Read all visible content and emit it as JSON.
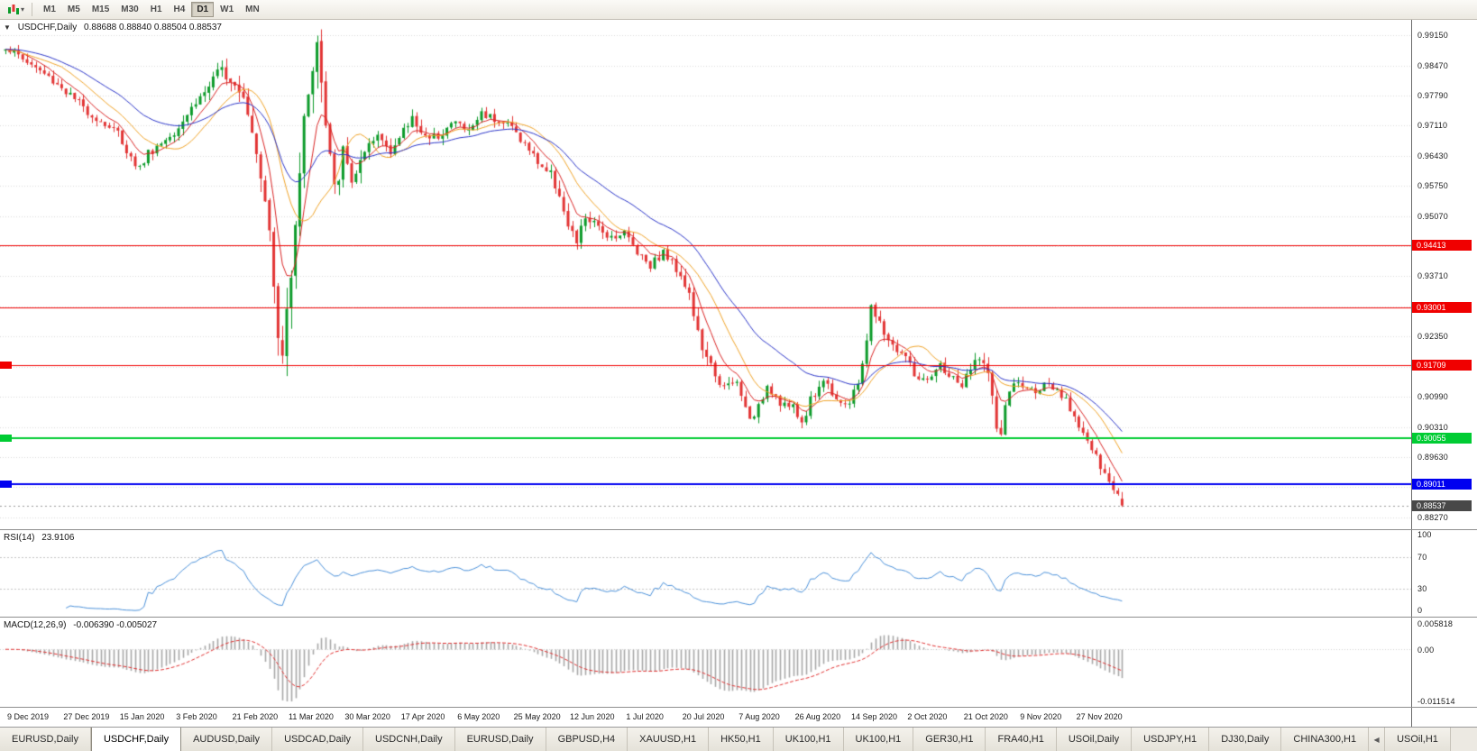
{
  "toolbar": {
    "timeframes": [
      "M1",
      "M5",
      "M15",
      "M30",
      "H1",
      "H4",
      "D1",
      "W1",
      "MN"
    ],
    "active_timeframe": "D1"
  },
  "main_chart": {
    "dropdown_arrow": "▼",
    "symbol_period": "USDCHF,Daily",
    "ohlc_text": "0.88688 0.88840 0.88504 0.88537",
    "axis": {
      "labels": [
        {
          "text": "0.99150",
          "price": 0.9915
        },
        {
          "text": "0.98470",
          "price": 0.9847
        },
        {
          "text": "0.97790",
          "price": 0.9779
        },
        {
          "text": "0.97110",
          "price": 0.9711
        },
        {
          "text": "0.96430",
          "price": 0.9643
        },
        {
          "text": "0.95750",
          "price": 0.9575
        },
        {
          "text": "0.95070",
          "price": 0.9507
        },
        {
          "text": "0.93710",
          "price": 0.9371
        },
        {
          "text": "0.92350",
          "price": 0.9235
        },
        {
          "text": "0.90990",
          "price": 0.9099
        },
        {
          "text": "0.90310",
          "price": 0.9031
        },
        {
          "text": "0.89630",
          "price": 0.8963
        },
        {
          "text": "0.88270",
          "price": 0.8827
        }
      ],
      "grid": {
        "start": 0.9915,
        "step": 0.0068,
        "count": 17
      }
    },
    "hlines": [
      {
        "label": "0.94413",
        "price": 0.94413,
        "color": "#f00000",
        "width": 1,
        "left_tag": false
      },
      {
        "label": "0.93001",
        "price": 0.93001,
        "color": "#f00000",
        "width": 1,
        "left_tag": false
      },
      {
        "label": "0.91709",
        "price": 0.91709,
        "color": "#f00000",
        "width": 1,
        "left_tag": true
      },
      {
        "label": "0.90055",
        "price": 0.90055,
        "color": "#00cc33",
        "width": 2,
        "left_tag": true
      },
      {
        "label": "0.89011",
        "price": 0.89011,
        "color": "#0000f0",
        "width": 2,
        "left_tag": true
      }
    ],
    "current_price": {
      "label": "0.88537",
      "price": 0.88537,
      "tag_color": "#484848"
    }
  },
  "rsi_panel": {
    "name": "RSI(14)",
    "value": "23.9106",
    "axis_labels": [
      "100",
      "70",
      "30",
      "0"
    ],
    "levels": [
      70,
      30
    ],
    "line_color": "#4a90d9",
    "period": 14
  },
  "macd_panel": {
    "name": "MACD(12,26,9)",
    "values": "-0.006390 -0.005027",
    "axis_top": "0.005818",
    "axis_zero": "0.00",
    "axis_bottom": "-0.011514",
    "scale": {
      "max": 0.005818,
      "min": -0.011514
    },
    "fast": 12,
    "slow": 26,
    "signal": 9,
    "histogram_color": "#a8a8a8",
    "signal_color": "#e03030"
  },
  "date_axis": {
    "labels": [
      {
        "t": 0,
        "text": "9 Dec 2019"
      },
      {
        "t": 13,
        "text": "27 Dec 2019"
      },
      {
        "t": 26,
        "text": "15 Jan 2020"
      },
      {
        "t": 39,
        "text": "3 Feb 2020"
      },
      {
        "t": 52,
        "text": "21 Feb 2020"
      },
      {
        "t": 65,
        "text": "11 Mar 2020"
      },
      {
        "t": 78,
        "text": "30 Mar 2020"
      },
      {
        "t": 91,
        "text": "17 Apr 2020"
      },
      {
        "t": 104,
        "text": "6 May 2020"
      },
      {
        "t": 117,
        "text": "25 May 2020"
      },
      {
        "t": 130,
        "text": "12 Jun 2020"
      },
      {
        "t": 143,
        "text": "1 Jul 2020"
      },
      {
        "t": 156,
        "text": "20 Jul 2020"
      },
      {
        "t": 169,
        "text": "7 Aug 2020"
      },
      {
        "t": 182,
        "text": "26 Aug 2020"
      },
      {
        "t": 195,
        "text": "14 Sep 2020"
      },
      {
        "t": 208,
        "text": "2 Oct 2020"
      },
      {
        "t": 221,
        "text": "21 Oct 2020"
      },
      {
        "t": 234,
        "text": "9 Nov 2020"
      },
      {
        "t": 247,
        "text": "27 Nov 2020"
      }
    ]
  },
  "tabs": {
    "scroll_left_glyph": "◀",
    "items": [
      {
        "label": "EURUSD,Daily",
        "active": false
      },
      {
        "label": "USDCHF,Daily",
        "active": true
      },
      {
        "label": "AUDUSD,Daily",
        "active": false
      },
      {
        "label": "USDCAD,Daily",
        "active": false
      },
      {
        "label": "USDCNH,Daily",
        "active": false
      },
      {
        "label": "EURUSD,Daily",
        "active": false
      },
      {
        "label": "GBPUSD,H4",
        "active": false
      },
      {
        "label": "XAUUSD,H1",
        "active": false
      },
      {
        "label": "HK50,H1",
        "active": false
      },
      {
        "label": "UK100,H1",
        "active": false
      },
      {
        "label": "UK100,H1",
        "active": false
      },
      {
        "label": "GER30,H1",
        "active": false
      },
      {
        "label": "FRA40,H1",
        "active": false
      },
      {
        "label": "USOil,Daily",
        "active": false
      },
      {
        "label": "USDJPY,H1",
        "active": false
      },
      {
        "label": "DJ30,Daily",
        "active": false
      },
      {
        "label": "CHINA300,H1",
        "active": false
      },
      {
        "label": "USOil,H1",
        "active": false
      }
    ]
  },
  "chart_data": {
    "type": "candlestick",
    "symbol": "USDCHF",
    "period": "Daily",
    "bars": 259,
    "ylim": [
      0.88,
      0.995
    ],
    "last_bar": {
      "open": 0.88688,
      "high": 0.8884,
      "low": 0.88504,
      "close": 0.88537
    },
    "candle_colors": {
      "up": "#0c9b2a",
      "down": "#e23434"
    },
    "moving_averages": [
      {
        "name": "fast",
        "type": "ema",
        "period": 7,
        "color": "#d92424"
      },
      {
        "name": "mid",
        "type": "sma",
        "period": 14,
        "color": "#efa226"
      },
      {
        "name": "slow",
        "type": "ema",
        "period": 30,
        "color": "#2b35c8"
      }
    ],
    "price_path": [
      [
        0,
        0.989
      ],
      [
        4,
        0.9862
      ],
      [
        8,
        0.9835
      ],
      [
        13,
        0.9798
      ],
      [
        17,
        0.976
      ],
      [
        21,
        0.9728
      ],
      [
        26,
        0.9695
      ],
      [
        29,
        0.9638
      ],
      [
        31,
        0.9615
      ],
      [
        33,
        0.965
      ],
      [
        36,
        0.9672
      ],
      [
        39,
        0.97
      ],
      [
        43,
        0.9752
      ],
      [
        47,
        0.98
      ],
      [
        50,
        0.9838
      ],
      [
        52,
        0.982
      ],
      [
        55,
        0.9788
      ],
      [
        58,
        0.966
      ],
      [
        60,
        0.956
      ],
      [
        61,
        0.946
      ],
      [
        63,
        0.923
      ],
      [
        64,
        0.9185
      ],
      [
        66,
        0.94
      ],
      [
        68,
        0.962
      ],
      [
        70,
        0.98
      ],
      [
        72,
        0.9898
      ],
      [
        74,
        0.9705
      ],
      [
        76,
        0.956
      ],
      [
        78,
        0.9648
      ],
      [
        80,
        0.959
      ],
      [
        83,
        0.964
      ],
      [
        86,
        0.9688
      ],
      [
        89,
        0.966
      ],
      [
        91,
        0.968
      ],
      [
        94,
        0.973
      ],
      [
        98,
        0.9675
      ],
      [
        101,
        0.97
      ],
      [
        104,
        0.972
      ],
      [
        107,
        0.9698
      ],
      [
        110,
        0.974
      ],
      [
        114,
        0.9725
      ],
      [
        117,
        0.9708
      ],
      [
        120,
        0.9668
      ],
      [
        123,
        0.963
      ],
      [
        126,
        0.96
      ],
      [
        128,
        0.956
      ],
      [
        130,
        0.9478
      ],
      [
        132,
        0.9448
      ],
      [
        134,
        0.9505
      ],
      [
        137,
        0.9478
      ],
      [
        140,
        0.9462
      ],
      [
        143,
        0.947
      ],
      [
        146,
        0.9428
      ],
      [
        149,
        0.9398
      ],
      [
        152,
        0.9425
      ],
      [
        156,
        0.9378
      ],
      [
        158,
        0.933
      ],
      [
        160,
        0.924
      ],
      [
        162,
        0.918
      ],
      [
        164,
        0.9152
      ],
      [
        166,
        0.9118
      ],
      [
        169,
        0.913
      ],
      [
        171,
        0.9072
      ],
      [
        173,
        0.9046
      ],
      [
        176,
        0.9128
      ],
      [
        179,
        0.9088
      ],
      [
        182,
        0.9072
      ],
      [
        184,
        0.904
      ],
      [
        186,
        0.9092
      ],
      [
        189,
        0.9138
      ],
      [
        192,
        0.9098
      ],
      [
        195,
        0.908
      ],
      [
        197,
        0.913
      ],
      [
        199,
        0.923
      ],
      [
        200,
        0.9298
      ],
      [
        202,
        0.9262
      ],
      [
        205,
        0.9212
      ],
      [
        208,
        0.919
      ],
      [
        210,
        0.9148
      ],
      [
        213,
        0.9128
      ],
      [
        216,
        0.9168
      ],
      [
        219,
        0.9138
      ],
      [
        221,
        0.9124
      ],
      [
        223,
        0.9158
      ],
      [
        225,
        0.9196
      ],
      [
        227,
        0.9148
      ],
      [
        229,
        0.903
      ],
      [
        230,
        0.9018
      ],
      [
        232,
        0.9118
      ],
      [
        234,
        0.9128
      ],
      [
        237,
        0.9112
      ],
      [
        240,
        0.9124
      ],
      [
        243,
        0.9108
      ],
      [
        245,
        0.9088
      ],
      [
        247,
        0.9058
      ],
      [
        249,
        0.9018
      ],
      [
        251,
        0.898
      ],
      [
        253,
        0.8938
      ],
      [
        255,
        0.8903
      ],
      [
        257,
        0.8882
      ],
      [
        258,
        0.88537
      ]
    ],
    "volatility": [
      [
        0,
        0.0026
      ],
      [
        45,
        0.0028
      ],
      [
        54,
        0.0042
      ],
      [
        58,
        0.006
      ],
      [
        62,
        0.0085
      ],
      [
        66,
        0.009
      ],
      [
        70,
        0.0085
      ],
      [
        74,
        0.008
      ],
      [
        78,
        0.0055
      ],
      [
        84,
        0.0042
      ],
      [
        92,
        0.003
      ],
      [
        110,
        0.0026
      ],
      [
        122,
        0.0026
      ],
      [
        128,
        0.0036
      ],
      [
        134,
        0.003
      ],
      [
        146,
        0.0024
      ],
      [
        156,
        0.003
      ],
      [
        160,
        0.0036
      ],
      [
        166,
        0.003
      ],
      [
        172,
        0.0028
      ],
      [
        182,
        0.0026
      ],
      [
        192,
        0.0026
      ],
      [
        200,
        0.003
      ],
      [
        210,
        0.0026
      ],
      [
        222,
        0.0028
      ],
      [
        228,
        0.004
      ],
      [
        232,
        0.0032
      ],
      [
        240,
        0.0022
      ],
      [
        248,
        0.0026
      ],
      [
        254,
        0.0028
      ],
      [
        258,
        0.0018
      ]
    ]
  }
}
